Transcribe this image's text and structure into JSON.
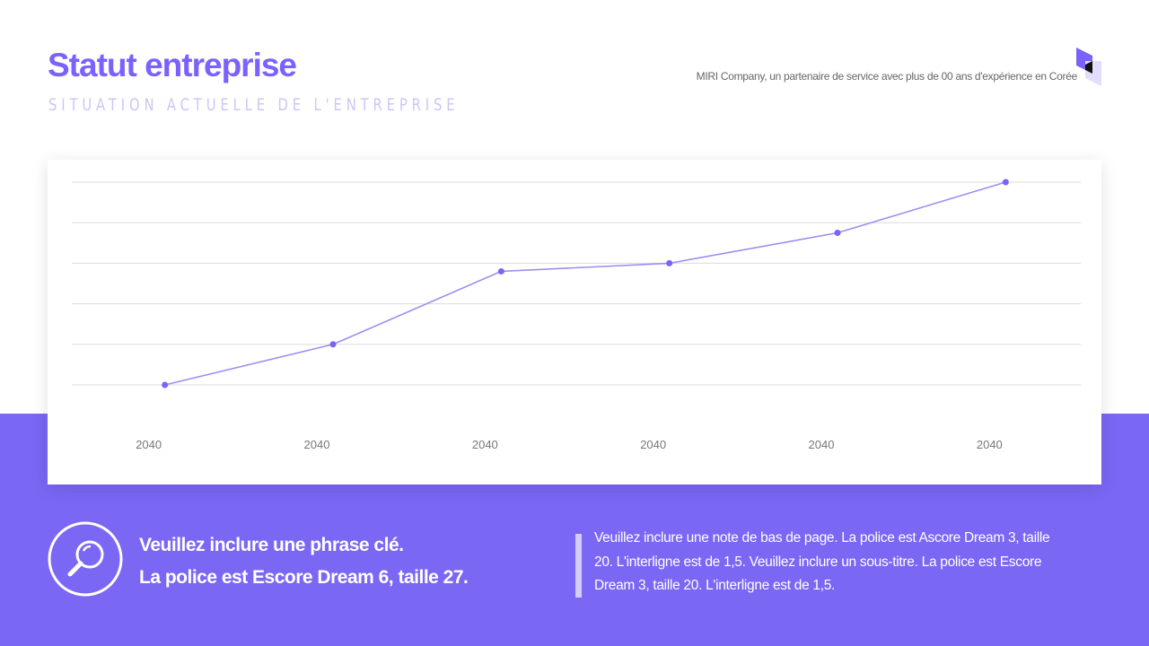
{
  "header": {
    "title": "Statut entreprise",
    "subtitle": "SITUATION ACTUELLE DE L'ENTREPRISE",
    "tagline": "MIRI Company, un partenaire de service avec plus de 00 ans d'expérience en Corée"
  },
  "chart_data": {
    "type": "line",
    "categories": [
      "2040",
      "2040",
      "2040",
      "2040",
      "2040",
      "2040"
    ],
    "values": [
      0,
      1,
      2.8,
      3,
      3.75,
      5
    ],
    "color": "#9d8ef2",
    "marker_color": "#7b61ff",
    "ylim": [
      0,
      5
    ],
    "yticks": [
      0,
      1,
      2,
      3,
      4,
      5
    ],
    "grid": true
  },
  "footer": {
    "key_phrase": [
      "Veuillez inclure une phrase clé.",
      "La police est Escore Dream 6, taille 27."
    ],
    "note": [
      "Veuillez inclure une note de bas de page. La police est Ascore Dream 3, taille",
      "20. L'interligne est de 1,5. Veuillez inclure un sous-titre. La police est Escore",
      "Dream 3, taille 20. L'interligne est de 1,5."
    ]
  }
}
